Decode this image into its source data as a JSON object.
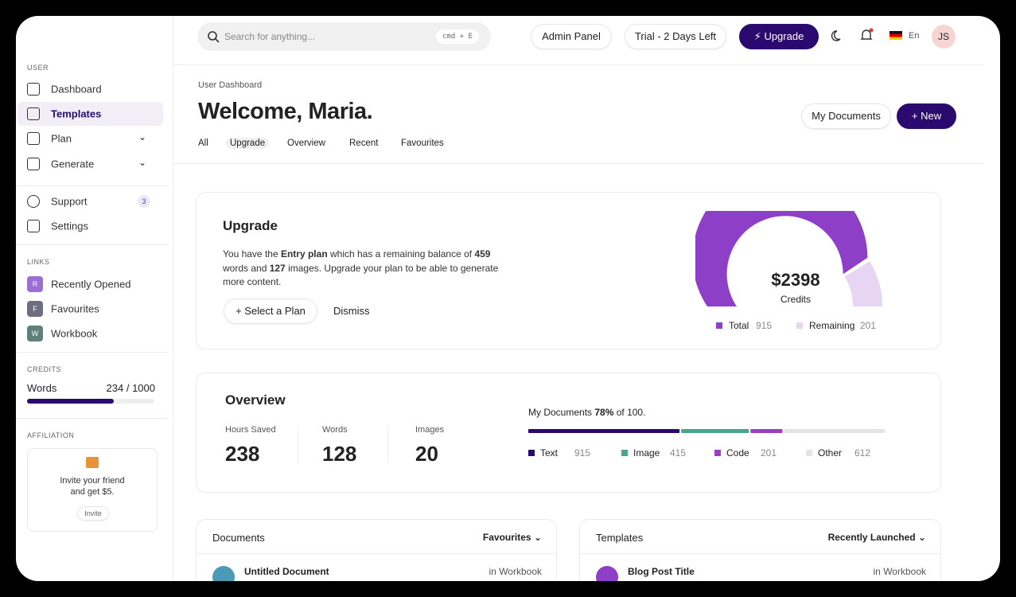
{
  "search": {
    "placeholder": "Search for anything...",
    "shortcut": "cmd + E"
  },
  "topbar": {
    "admin": "Admin Panel",
    "trial": "Trial - 2 Days Left",
    "upgrade": "Upgrade",
    "language": "En",
    "avatar": "JS"
  },
  "sidebar": {
    "user_heading": "USER",
    "user_items": [
      "Dashboard",
      "Templates",
      "Plan",
      "Generate",
      "Support",
      "Settings"
    ],
    "support_badge": 3,
    "links_heading": "LINKS",
    "links": [
      {
        "initial": "R",
        "label": "Recently Opened",
        "color": "#9b6fd6"
      },
      {
        "initial": "F",
        "label": "Favourites",
        "color": "#6b6f80"
      },
      {
        "initial": "W",
        "label": "Workbook",
        "color": "#5f7f7a"
      }
    ],
    "credits_heading": "CREDITS",
    "credits_label": "Words",
    "credits_value": "234 / 1000",
    "affiliation_heading": "AFFILIATION",
    "invite_line1": "Invite your friend",
    "invite_line2": "and get $5.",
    "invite_button": "Invite"
  },
  "header": {
    "breadcrumb": "User Dashboard",
    "title": "Welcome, Maria.",
    "tabs": [
      "All",
      "Upgrade",
      "Overview",
      "Recent",
      "Favourites"
    ],
    "my_documents": "My Documents",
    "new": "New"
  },
  "upgrade_card": {
    "title": "Upgrade",
    "text_1": "You have the ",
    "plan": "Entry plan",
    "text_2": " which has a remaining balance of ",
    "words": 459,
    "text_3": " words and ",
    "images": 127,
    "text_4": " images. Upgrade your plan to be able to generate more content.",
    "select_plan": "Select a Plan",
    "dismiss": "Dismiss",
    "gauge": {
      "amount": "$2398",
      "caption": "Credits",
      "series": [
        {
          "name": "Total",
          "value": 915,
          "color": "#8e3fc8"
        },
        {
          "name": "Remaining",
          "value": 201,
          "color": "#e6d6f3"
        }
      ]
    }
  },
  "overview": {
    "title": "Overview",
    "stats": [
      {
        "label": "Hours Saved",
        "value": 238
      },
      {
        "label": "Words",
        "value": 128
      },
      {
        "label": "Images",
        "value": 20
      }
    ],
    "docs_prefix": "My Documents ",
    "docs_percent": "78%",
    "docs_suffix": " of 100.",
    "series": [
      {
        "name": "Text",
        "value": 915,
        "color": "#2a0a6e"
      },
      {
        "name": "Image",
        "value": 415,
        "color": "#4aa58d"
      },
      {
        "name": "Code",
        "value": 201,
        "color": "#9b3fc9"
      },
      {
        "name": "Other",
        "value": 612,
        "color": "#e4e4e4"
      }
    ]
  },
  "documents": {
    "title": "Documents",
    "filter": "Favourites",
    "row_title": "Untitled Document",
    "row_location": "in Workbook"
  },
  "templates": {
    "title": "Templates",
    "filter": "Recently Launched",
    "row_title": "Blog Post Title",
    "row_location": "in Workbook"
  }
}
